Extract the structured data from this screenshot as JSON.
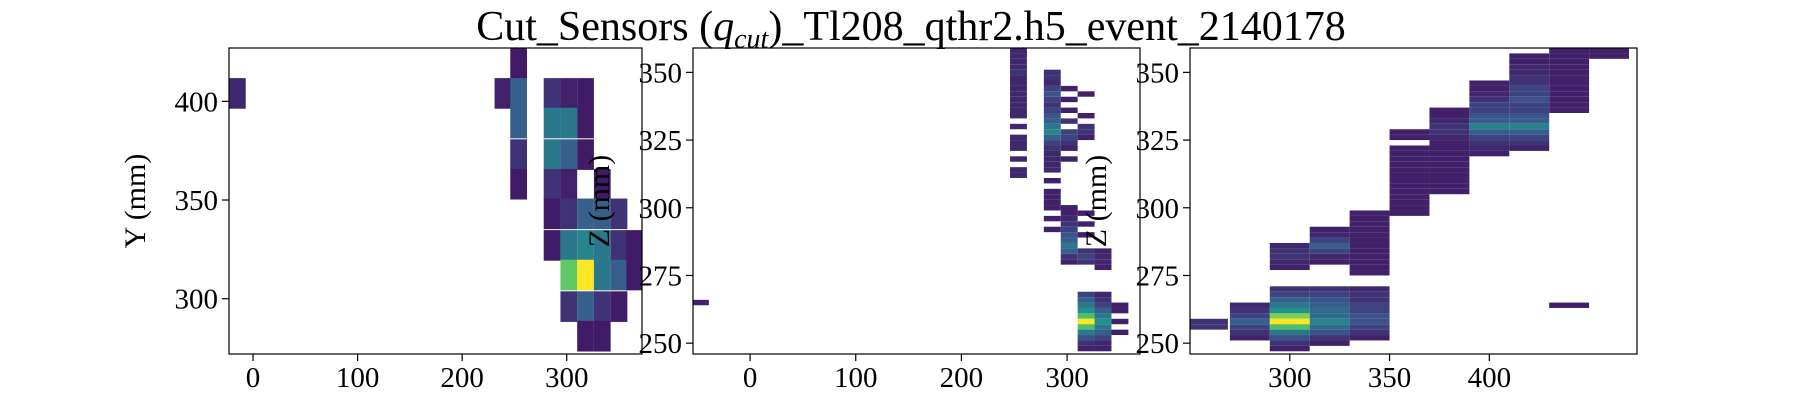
{
  "title_parts": [
    "Cut_Sensors (",
    "q",
    "cut",
    ")_Tl208_qthr2.h5_event_2140178"
  ],
  "chart_data": [
    {
      "type": "heatmap",
      "ylabel": "Y (mm)",
      "colormap": "viridis",
      "vlim": [
        0,
        1
      ],
      "xlim": [
        -23,
        372
      ],
      "ylim": [
        272,
        427
      ],
      "xticks": [
        0,
        100,
        200,
        300
      ],
      "yticks": [
        300,
        350,
        400
      ],
      "bin": [
        16,
        15.5
      ],
      "columns": [
        {
          "x": -15,
          "y": [
            404
          ],
          "values": [
            0.12
          ]
        },
        {
          "x": 239,
          "y": [
            404
          ],
          "values": [
            0.1
          ]
        },
        {
          "x": 254,
          "y": [
            419,
            404,
            389,
            373,
            358
          ],
          "values": [
            0.08,
            0.3,
            0.3,
            0.15,
            0.08
          ]
        },
        {
          "x": 286,
          "y": [
            404,
            389,
            373,
            358,
            343,
            327
          ],
          "values": [
            0.15,
            0.4,
            0.4,
            0.15,
            0.08,
            0.08
          ]
        },
        {
          "x": 302,
          "y": [
            404,
            389,
            373,
            358,
            343,
            327,
            312,
            296
          ],
          "values": [
            0.1,
            0.4,
            0.3,
            0.1,
            0.15,
            0.4,
            0.75,
            0.15
          ]
        },
        {
          "x": 318,
          "y": [
            404,
            389,
            373,
            343,
            327,
            312,
            296,
            281
          ],
          "values": [
            0.08,
            0.08,
            0.08,
            0.3,
            0.45,
            1.0,
            0.3,
            0.08
          ]
        },
        {
          "x": 334,
          "y": [
            358,
            343,
            327,
            312,
            296,
            281
          ],
          "values": [
            0.08,
            0.3,
            0.4,
            0.4,
            0.15,
            0.08
          ]
        },
        {
          "x": 350,
          "y": [
            343,
            327,
            312,
            296
          ],
          "values": [
            0.15,
            0.15,
            0.3,
            0.08
          ]
        },
        {
          "x": 365,
          "y": [
            327,
            312
          ],
          "values": [
            0.08,
            0.08
          ]
        }
      ]
    },
    {
      "type": "heatmap",
      "ylabel": "Z (mm)",
      "colormap": "viridis",
      "vlim": [
        0,
        1
      ],
      "xlim": [
        -54,
        369
      ],
      "ylim": [
        246,
        359
      ],
      "xticks": [
        0,
        100,
        200,
        300
      ],
      "yticks": [
        250,
        275,
        300,
        325,
        350
      ],
      "bin": [
        16,
        2
      ],
      "columns": [
        {
          "x": -47,
          "y": [
            265
          ],
          "values": [
            0.1
          ]
        },
        {
          "x": 254,
          "y": [
            358,
            356,
            354,
            352,
            350,
            348,
            346,
            344,
            342,
            340,
            338,
            336,
            334,
            330,
            326,
            324,
            322,
            318,
            314,
            312
          ],
          "values": [
            0.12,
            0.12,
            0.12,
            0.12,
            0.15,
            0.12,
            0.12,
            0.12,
            0.12,
            0.12,
            0.12,
            0.12,
            0.12,
            0.12,
            0.12,
            0.12,
            0.12,
            0.12,
            0.12,
            0.12
          ]
        },
        {
          "x": 286,
          "y": [
            350,
            348,
            346,
            344,
            342,
            340,
            338,
            336,
            334,
            332,
            330,
            328,
            326,
            324,
            322,
            320,
            318,
            316,
            314,
            310,
            306,
            304,
            302,
            300,
            296,
            292
          ],
          "values": [
            0.15,
            0.15,
            0.12,
            0.2,
            0.25,
            0.2,
            0.15,
            0.2,
            0.25,
            0.3,
            0.4,
            0.45,
            0.3,
            0.2,
            0.15,
            0.12,
            0.12,
            0.12,
            0.12,
            0.1,
            0.1,
            0.1,
            0.1,
            0.1,
            0.1,
            0.1
          ]
        },
        {
          "x": 302,
          "y": [
            344,
            340,
            336,
            332,
            328,
            326,
            324,
            322,
            318,
            300,
            298,
            296,
            294,
            292,
            290,
            288,
            286,
            284,
            282,
            280
          ],
          "values": [
            0.1,
            0.1,
            0.1,
            0.15,
            0.2,
            0.2,
            0.15,
            0.1,
            0.1,
            0.1,
            0.1,
            0.12,
            0.15,
            0.2,
            0.25,
            0.3,
            0.4,
            0.3,
            0.15,
            0.1
          ]
        },
        {
          "x": 318,
          "y": [
            342,
            334,
            330,
            328,
            326,
            298,
            294,
            290,
            284,
            282,
            280,
            268,
            266,
            264,
            262,
            260,
            258,
            256,
            254,
            252,
            250,
            248
          ],
          "values": [
            0.1,
            0.1,
            0.15,
            0.15,
            0.1,
            0.1,
            0.1,
            0.1,
            0.15,
            0.2,
            0.15,
            0.2,
            0.3,
            0.4,
            0.5,
            0.7,
            1.0,
            0.7,
            0.4,
            0.25,
            0.15,
            0.1
          ]
        },
        {
          "x": 334,
          "y": [
            284,
            282,
            280,
            278,
            268,
            266,
            264,
            262,
            260,
            258,
            256,
            254,
            252,
            250,
            248
          ],
          "values": [
            0.1,
            0.12,
            0.12,
            0.1,
            0.12,
            0.15,
            0.2,
            0.3,
            0.4,
            0.5,
            0.4,
            0.3,
            0.2,
            0.12,
            0.1
          ]
        },
        {
          "x": 350,
          "y": [
            264,
            262,
            258,
            254
          ],
          "values": [
            0.1,
            0.1,
            0.1,
            0.1
          ]
        }
      ]
    },
    {
      "type": "heatmap",
      "ylabel": "Z (mm)",
      "colormap": "viridis",
      "vlim": [
        0,
        1
      ],
      "xlim": [
        250,
        474
      ],
      "ylim": [
        246,
        359
      ],
      "xticks": [
        300,
        350,
        400
      ],
      "yticks": [
        250,
        275,
        300,
        325,
        350
      ],
      "bin": [
        20,
        2
      ],
      "columns": [
        {
          "x": 259,
          "y": [
            258,
            256
          ],
          "values": [
            0.15,
            0.15
          ]
        },
        {
          "x": 280,
          "y": [
            264,
            262,
            260,
            258,
            256,
            254,
            252
          ],
          "values": [
            0.12,
            0.15,
            0.2,
            0.3,
            0.2,
            0.15,
            0.1
          ]
        },
        {
          "x": 300,
          "y": [
            286,
            284,
            282,
            280,
            278,
            270,
            268,
            266,
            264,
            262,
            260,
            258,
            256,
            254,
            252,
            250,
            248
          ],
          "values": [
            0.12,
            0.15,
            0.15,
            0.12,
            0.1,
            0.15,
            0.2,
            0.3,
            0.4,
            0.5,
            0.8,
            1.0,
            0.7,
            0.4,
            0.25,
            0.15,
            0.1
          ]
        },
        {
          "x": 320,
          "y": [
            292,
            290,
            288,
            286,
            284,
            282,
            280,
            270,
            268,
            266,
            264,
            262,
            260,
            258,
            256,
            254,
            252,
            250
          ],
          "values": [
            0.1,
            0.12,
            0.2,
            0.3,
            0.2,
            0.12,
            0.1,
            0.15,
            0.2,
            0.25,
            0.3,
            0.35,
            0.35,
            0.45,
            0.35,
            0.25,
            0.15,
            0.1
          ]
        },
        {
          "x": 340,
          "y": [
            298,
            296,
            294,
            292,
            290,
            288,
            286,
            284,
            282,
            280,
            278,
            276,
            270,
            268,
            266,
            264,
            262,
            260,
            258,
            256,
            254,
            252
          ],
          "values": [
            0.1,
            0.1,
            0.1,
            0.1,
            0.1,
            0.1,
            0.1,
            0.1,
            0.1,
            0.1,
            0.1,
            0.1,
            0.12,
            0.15,
            0.15,
            0.2,
            0.2,
            0.25,
            0.25,
            0.2,
            0.15,
            0.1
          ]
        },
        {
          "x": 360,
          "y": [
            328,
            326,
            322,
            320,
            318,
            316,
            314,
            312,
            310,
            308,
            306,
            304,
            302,
            300,
            298
          ],
          "values": [
            0.1,
            0.1,
            0.1,
            0.1,
            0.1,
            0.1,
            0.1,
            0.1,
            0.1,
            0.1,
            0.1,
            0.1,
            0.1,
            0.1,
            0.1
          ]
        },
        {
          "x": 380,
          "y": [
            336,
            334,
            332,
            330,
            328,
            326,
            324,
            322,
            320,
            318,
            316,
            314,
            312,
            310,
            308,
            306
          ],
          "values": [
            0.1,
            0.1,
            0.12,
            0.15,
            0.15,
            0.12,
            0.1,
            0.1,
            0.1,
            0.1,
            0.1,
            0.1,
            0.1,
            0.1,
            0.1,
            0.1
          ]
        },
        {
          "x": 400,
          "y": [
            346,
            344,
            342,
            340,
            338,
            336,
            334,
            332,
            330,
            328,
            326,
            324,
            322,
            320
          ],
          "values": [
            0.1,
            0.1,
            0.12,
            0.15,
            0.2,
            0.2,
            0.25,
            0.3,
            0.45,
            0.3,
            0.2,
            0.15,
            0.12,
            0.1
          ]
        },
        {
          "x": 420,
          "y": [
            356,
            354,
            352,
            350,
            348,
            346,
            344,
            342,
            340,
            338,
            336,
            334,
            332,
            330,
            328,
            326,
            324,
            322
          ],
          "values": [
            0.1,
            0.1,
            0.12,
            0.12,
            0.15,
            0.15,
            0.2,
            0.2,
            0.25,
            0.2,
            0.2,
            0.25,
            0.3,
            0.45,
            0.3,
            0.2,
            0.15,
            0.1
          ]
        },
        {
          "x": 440,
          "y": [
            358,
            356,
            354,
            352,
            350,
            348,
            346,
            344,
            342,
            340,
            338,
            336,
            264
          ],
          "values": [
            0.1,
            0.1,
            0.1,
            0.1,
            0.1,
            0.1,
            0.1,
            0.1,
            0.1,
            0.1,
            0.1,
            0.1,
            0.1
          ]
        },
        {
          "x": 460,
          "y": [
            358,
            356
          ],
          "values": [
            0.1,
            0.1
          ]
        }
      ]
    }
  ]
}
